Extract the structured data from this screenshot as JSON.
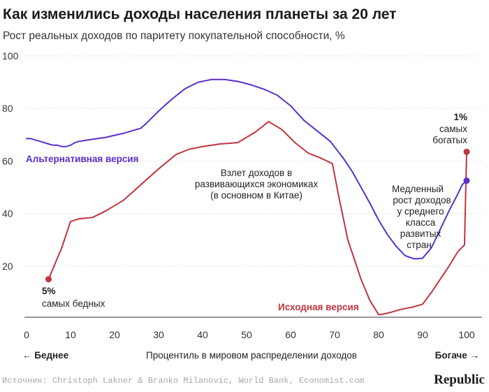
{
  "chart_data": {
    "type": "line",
    "title": "Как изменились доходы населения планеты за 20 лет",
    "subtitle": "Рост реальных доходов по паритету покупательной способности, %",
    "xlabel": "Процентиль в мировом распределении доходов",
    "x_left_label": "← Беднее",
    "x_right_label": "Богаче →",
    "xlim": [
      0,
      100
    ],
    "ylim": [
      0,
      100
    ],
    "x_ticks": [
      0,
      10,
      20,
      30,
      40,
      50,
      60,
      70,
      80,
      90,
      100
    ],
    "y_ticks": [
      20,
      40,
      60,
      80,
      100
    ],
    "series": [
      {
        "name": "Альтернативная версия",
        "color": "#5b2fc9",
        "x": [
          0,
          1,
          3,
          5,
          6,
          7,
          8,
          9,
          10,
          11,
          12,
          14,
          16,
          18,
          20,
          22,
          24,
          26,
          27,
          30,
          33,
          36,
          39,
          42,
          45,
          48,
          51,
          54,
          57,
          60,
          63,
          66,
          69,
          72,
          74,
          76,
          78,
          80,
          82,
          84,
          86,
          88,
          89,
          90,
          92,
          94,
          96,
          98,
          99,
          100
        ],
        "y": [
          68.5,
          68.5,
          67.5,
          66.5,
          66,
          66,
          65.5,
          65.5,
          66,
          67,
          67.5,
          68,
          68.5,
          69,
          69.8,
          70.5,
          71.5,
          72.5,
          74,
          79,
          83.5,
          87.5,
          90,
          91,
          91,
          90.3,
          89,
          87.3,
          85,
          81,
          75.5,
          71.5,
          67.5,
          61,
          56,
          50,
          44,
          37.5,
          32,
          27.5,
          24,
          22.8,
          22.8,
          23,
          27,
          34,
          41,
          47.5,
          51,
          52.5
        ]
      },
      {
        "name": "Исходная версия",
        "color": "#c0343f",
        "x": [
          5,
          6,
          8,
          10,
          12,
          15,
          18,
          22,
          24,
          26,
          30,
          34,
          37,
          40,
          44,
          48,
          52,
          55,
          58,
          61,
          64,
          67,
          69.5,
          71,
          73,
          76,
          78,
          80,
          81,
          83,
          85,
          88,
          90,
          92,
          94,
          96,
          98,
          99.5,
          100
        ],
        "y": [
          15,
          19,
          27,
          37,
          38,
          38.5,
          41,
          45,
          48,
          51,
          57,
          62.5,
          64.5,
          65.5,
          66.5,
          67,
          71,
          75,
          72,
          67,
          63,
          61,
          59,
          46,
          30,
          15,
          7,
          1.5,
          1.7,
          2.5,
          3.5,
          4.5,
          5.5,
          10,
          15,
          20,
          25.5,
          28,
          63.5
        ]
      }
    ],
    "markers": [
      {
        "series": "Исходная версия",
        "x": 5,
        "y": 15
      },
      {
        "series": "Исходная версия",
        "x": 100,
        "y": 63.5
      },
      {
        "series": "Альтернативная версия",
        "x": 100,
        "y": 52.5
      }
    ],
    "annotations": {
      "poor_value": "5%",
      "poor_text": "самых бедных",
      "rich_value": "1%",
      "rich_text": [
        "самых",
        "богатых"
      ],
      "emerging": [
        "Взлет доходов в",
        "развивающихся экономиках",
        "(в основном в Китае)"
      ],
      "middle": [
        "Медленный",
        "рост доходов",
        "у среднего",
        "класса",
        "развитых",
        "стран"
      ]
    },
    "series_labels": {
      "alternative": "Альтернативная версия",
      "original": "Исходная версия"
    },
    "source": "Источник: Christoph Lakner & Branko Milanovic, World Bank, Economist.com",
    "logo": "Republic"
  }
}
